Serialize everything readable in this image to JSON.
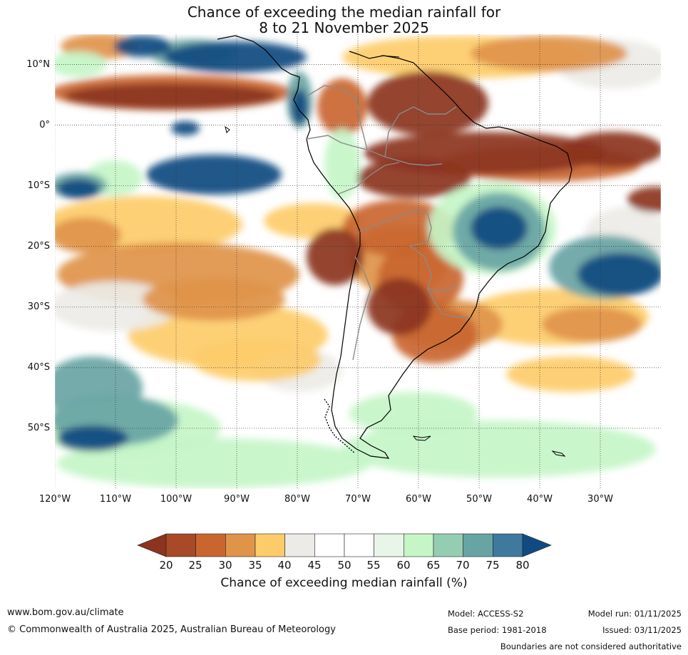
{
  "title": {
    "line1": "Chance of exceeding the median rainfall for",
    "line2": "8 to 21 November 2025"
  },
  "axes": {
    "lat_labels": [
      "10°N",
      "0°",
      "10°S",
      "20°S",
      "30°S",
      "40°S",
      "50°S"
    ],
    "lat_values": [
      10,
      0,
      -10,
      -20,
      -30,
      -40,
      -50
    ],
    "lon_labels": [
      "120°W",
      "110°W",
      "100°W",
      "90°W",
      "80°W",
      "70°W",
      "60°W",
      "50°W",
      "40°W",
      "30°W"
    ],
    "lon_values": [
      -120,
      -110,
      -100,
      -90,
      -80,
      -70,
      -60,
      -50,
      -40,
      -30
    ],
    "extent": {
      "lon_min": -120,
      "lon_max": -20,
      "lat_min": -60,
      "lat_max": 15
    }
  },
  "colorbar": {
    "ticks": [
      "20",
      "25",
      "30",
      "35",
      "40",
      "45",
      "50",
      "55",
      "60",
      "65",
      "70",
      "75",
      "80"
    ],
    "colors": [
      "#8b3420",
      "#a84a27",
      "#c9662f",
      "#e0944a",
      "#fdcc6a",
      "#edebe7",
      "#ffffff",
      "#ffffff",
      "#e9f5e9",
      "#c6f5c8",
      "#95cdb2",
      "#68a4a4",
      "#3f7a9e"
    ],
    "low_color": "#8b3420",
    "high_color": "#114a80",
    "label": "Chance of exceeding median rainfall (%)"
  },
  "map_colors": {
    "very_dry": "#8b3420",
    "dry": "#c9662f",
    "mod_dry": "#e0944a",
    "slight_dry": "#fdcc6a",
    "neutral": "#edebe7",
    "slight_wet": "#c6f5c8",
    "mod_wet": "#68a4a4",
    "very_wet": "#114a80"
  },
  "footer": {
    "website": "www.bom.gov.au/climate",
    "copyright": "© Commonwealth of Australia 2025, Australian Bureau of Meteorology",
    "model": "Model: ACCESS-S2",
    "base_period": "Base period: 1981-2018",
    "model_run": "Model run: 01/11/2025",
    "issued": "Issued: 03/11/2025",
    "disclaimer": "Boundaries are not considered authoritative"
  }
}
